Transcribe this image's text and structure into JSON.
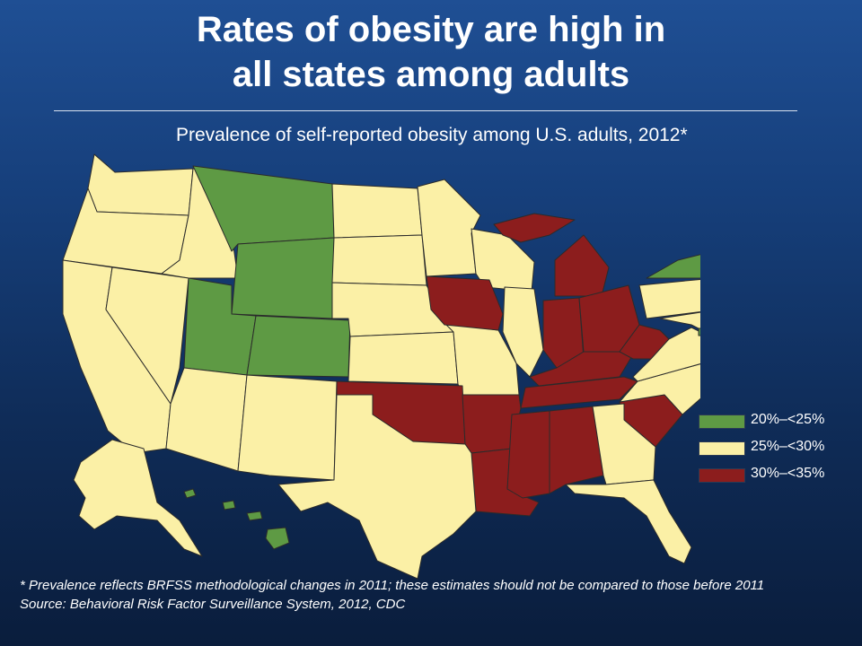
{
  "slide": {
    "title_line1": "Rates of obesity are high in",
    "title_line2": "all states among adults",
    "subtitle": "Prevalence of self-reported obesity among U.S. adults, 2012*"
  },
  "colors": {
    "green": "#5e9a44",
    "yellow": "#fbf0a6",
    "red": "#8c1d1d",
    "outline": "#2b2b2b"
  },
  "legend": [
    {
      "label": "20%–<25%",
      "color": "#5e9a44"
    },
    {
      "label": "25%–<30%",
      "color": "#fbf0a6"
    },
    {
      "label": "30%–<35%",
      "color": "#8c1d1d"
    }
  ],
  "footnote": {
    "line1": "* Prevalence reflects BRFSS methodological changes in 2011; these estimates should not be compared to those before 2011",
    "line2": "Source: Behavioral Risk Factor Surveillance System, 2012, CDC"
  }
}
